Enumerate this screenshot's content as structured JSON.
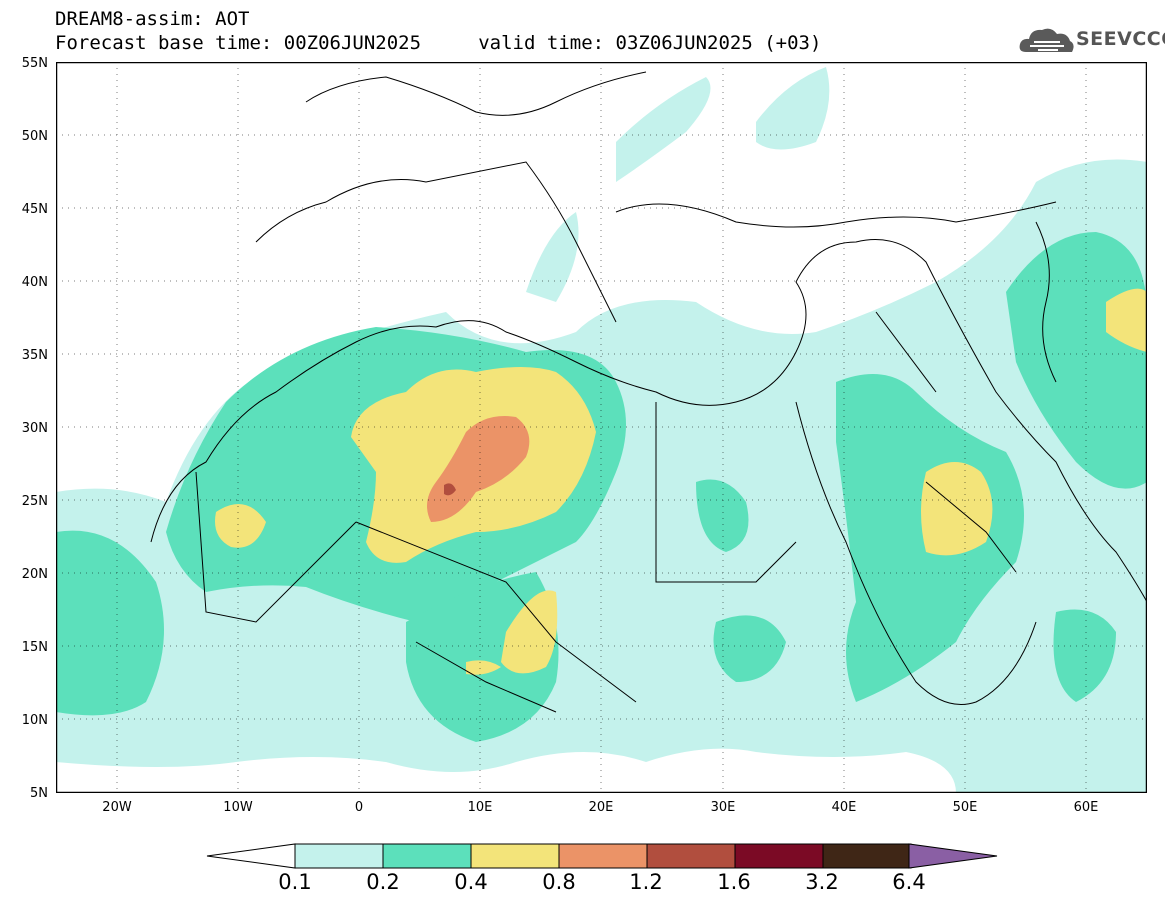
{
  "header": {
    "line1": "DREAM8-assim: AOT",
    "line2": "Forecast base time: 00Z06JUN2025     valid time: 03Z06JUN2025 (+03)"
  },
  "logo": {
    "text": "SEEVCCC",
    "icon": "cloud-icon"
  },
  "map": {
    "lon_range": [
      -25,
      65
    ],
    "lat_range": [
      5,
      55
    ],
    "grid": "dotted",
    "lat_ticks": [
      "55N",
      "50N",
      "45N",
      "40N",
      "35N",
      "30N",
      "25N",
      "20N",
      "15N",
      "10N",
      "5N"
    ],
    "lon_ticks": [
      "20W",
      "10W",
      "0",
      "10E",
      "20E",
      "30E",
      "40E",
      "50E",
      "60E"
    ]
  },
  "colorbar": {
    "labels": [
      "0.1",
      "0.2",
      "0.4",
      "0.8",
      "1.2",
      "1.6",
      "3.2",
      "6.4"
    ],
    "colors": [
      "#c4f2ec",
      "#5ce0bb",
      "#f3e47a",
      "#eb9367",
      "#b14e3e",
      "#7b0a25",
      "#3f2616",
      "#8a5fa4"
    ],
    "extend": "both"
  }
}
